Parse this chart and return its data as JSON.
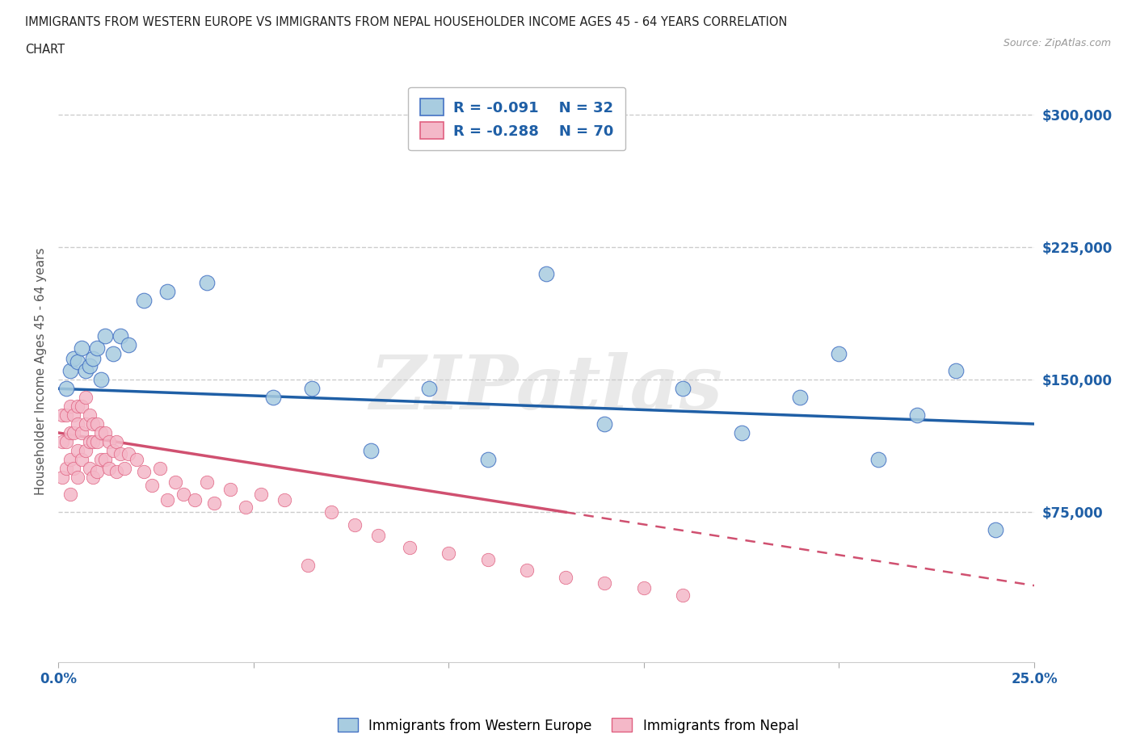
{
  "title_line1": "IMMIGRANTS FROM WESTERN EUROPE VS IMMIGRANTS FROM NEPAL HOUSEHOLDER INCOME AGES 45 - 64 YEARS CORRELATION",
  "title_line2": "CHART",
  "source": "Source: ZipAtlas.com",
  "ylabel": "Householder Income Ages 45 - 64 years",
  "xlim": [
    0.0,
    0.25
  ],
  "ylim": [
    -10000,
    320000
  ],
  "xticks": [
    0.0,
    0.05,
    0.1,
    0.15,
    0.2,
    0.25
  ],
  "ytick_values": [
    75000,
    150000,
    225000,
    300000
  ],
  "ytick_labels": [
    "$75,000",
    "$150,000",
    "$225,000",
    "$300,000"
  ],
  "blue_color": "#a8cce0",
  "blue_edge": "#4472c4",
  "pink_color": "#f4b8c8",
  "pink_edge": "#e06080",
  "blue_line_color": "#1f5fa6",
  "pink_line_color": "#d05070",
  "legend_label_blue": "R = -0.091    N = 32",
  "legend_label_pink": "R = -0.288    N = 70",
  "bottom_legend": [
    "Immigrants from Western Europe",
    "Immigrants from Nepal"
  ],
  "watermark": "ZIPatlas",
  "blue_x": [
    0.002,
    0.003,
    0.004,
    0.005,
    0.006,
    0.007,
    0.008,
    0.009,
    0.01,
    0.011,
    0.012,
    0.014,
    0.016,
    0.018,
    0.022,
    0.028,
    0.038,
    0.055,
    0.065,
    0.08,
    0.095,
    0.11,
    0.125,
    0.14,
    0.16,
    0.175,
    0.19,
    0.2,
    0.21,
    0.22,
    0.23,
    0.24
  ],
  "blue_y": [
    145000,
    155000,
    162000,
    160000,
    168000,
    155000,
    158000,
    162000,
    168000,
    150000,
    175000,
    165000,
    175000,
    170000,
    195000,
    200000,
    205000,
    140000,
    145000,
    110000,
    145000,
    105000,
    210000,
    125000,
    145000,
    120000,
    140000,
    165000,
    105000,
    130000,
    155000,
    65000
  ],
  "pink_x": [
    0.001,
    0.001,
    0.001,
    0.002,
    0.002,
    0.002,
    0.003,
    0.003,
    0.003,
    0.003,
    0.004,
    0.004,
    0.004,
    0.005,
    0.005,
    0.005,
    0.005,
    0.006,
    0.006,
    0.006,
    0.007,
    0.007,
    0.007,
    0.008,
    0.008,
    0.008,
    0.009,
    0.009,
    0.009,
    0.01,
    0.01,
    0.01,
    0.011,
    0.011,
    0.012,
    0.012,
    0.013,
    0.013,
    0.014,
    0.015,
    0.015,
    0.016,
    0.017,
    0.018,
    0.02,
    0.022,
    0.024,
    0.026,
    0.028,
    0.03,
    0.032,
    0.035,
    0.038,
    0.04,
    0.044,
    0.048,
    0.052,
    0.058,
    0.064,
    0.07,
    0.076,
    0.082,
    0.09,
    0.1,
    0.11,
    0.12,
    0.13,
    0.14,
    0.15,
    0.16
  ],
  "pink_y": [
    130000,
    115000,
    95000,
    130000,
    115000,
    100000,
    135000,
    120000,
    105000,
    85000,
    130000,
    120000,
    100000,
    135000,
    125000,
    110000,
    95000,
    135000,
    120000,
    105000,
    140000,
    125000,
    110000,
    130000,
    115000,
    100000,
    125000,
    115000,
    95000,
    125000,
    115000,
    98000,
    120000,
    105000,
    120000,
    105000,
    115000,
    100000,
    110000,
    115000,
    98000,
    108000,
    100000,
    108000,
    105000,
    98000,
    90000,
    100000,
    82000,
    92000,
    85000,
    82000,
    92000,
    80000,
    88000,
    78000,
    85000,
    82000,
    45000,
    75000,
    68000,
    62000,
    55000,
    52000,
    48000,
    42000,
    38000,
    35000,
    32000,
    28000
  ]
}
